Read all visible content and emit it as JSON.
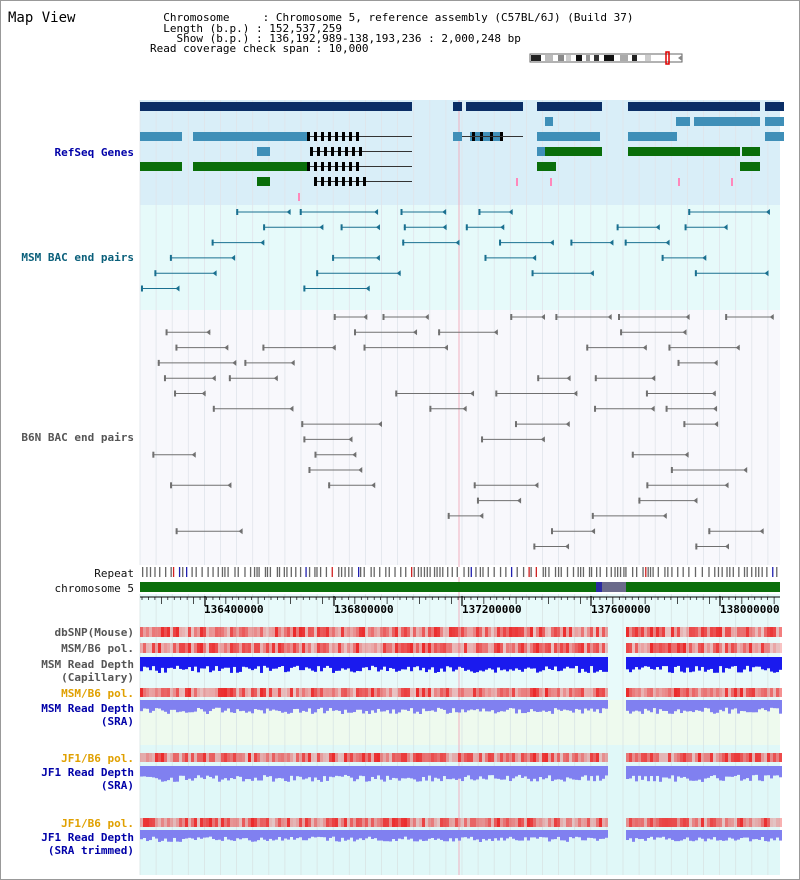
{
  "header": {
    "title": "Map View",
    "info_lines": [
      "  Chromosome     : Chromosome 5, reference assembly (C57BL/6J) (Build 37)",
      "  Length (b.p.) : 152,537,259",
      "    Show (b.p.) : 136,192,989-138,193,236 : 2,000,248 bp",
      "Read coverage check span : 10,000"
    ]
  },
  "tracks": {
    "refseq": "RefSeq Genes",
    "msm_bac": "MSM BAC end pairs",
    "b6n_bac": "B6N BAC end pairs",
    "repeat": "Repeat",
    "chromosome": "chromosome 5",
    "dbsnp": "dbSNP(Mouse)",
    "msm_pol_cap": "MSM/B6 pol.",
    "msm_depth_cap_1": "MSM Read Depth",
    "msm_depth_cap_2": "(Capillary)",
    "msm_pol_sra": "MSM/B6 pol.",
    "msm_depth_sra_1": "MSM Read Depth",
    "msm_depth_sra_2": "(SRA)",
    "jf1_pol": "JF1/B6 pol.",
    "jf1_depth_1": "JF1 Read Depth",
    "jf1_depth_2": "(SRA)",
    "jf1_pol_trim": "JF1/B6 pol.",
    "jf1_depth_trim_1": "JF1 Read Depth",
    "jf1_depth_trim_2": "(SRA trimmed)"
  },
  "ruler": {
    "ticks": [
      "136400000",
      "136800000",
      "137200000",
      "137600000",
      "138000000"
    ]
  },
  "colors": {
    "refseq_bg": "#d9eef8",
    "msm_bg": "#e6fafa",
    "b6n_bg": "#f8f8fc",
    "navy": "#0b2e66",
    "steel": "#3f8fb8",
    "green": "#0a6e0a",
    "msm_line": "#1a7090",
    "b6n_line": "#707070",
    "chromosome": "#0a6e0a",
    "snp_red": "#e03030",
    "depth_blue": "#1a1aee",
    "depth_light": "#8080f0"
  }
}
